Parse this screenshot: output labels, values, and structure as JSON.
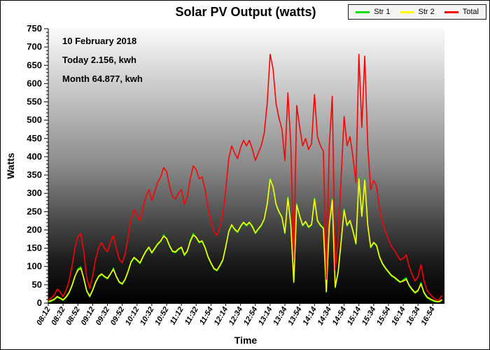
{
  "figure": {
    "title": "Solar PV Output (watts)",
    "x_axis_title": "Time",
    "y_axis_title": "Watts",
    "annotations": {
      "date": "10 February 2018",
      "today": "Today 2.156, kwh",
      "month": "Month 64.877, kwh"
    }
  },
  "legend": {
    "items": [
      {
        "label": "Str 1",
        "color": "#00e000"
      },
      {
        "label": "Str 2",
        "color": "#ffff00"
      },
      {
        "label": "Total",
        "color": "#ff0000"
      }
    ]
  },
  "chart_data": {
    "type": "line",
    "title": "Solar PV Output (watts)",
    "xlabel": "Time",
    "ylabel": "Watts",
    "ylim": [
      0,
      750
    ],
    "ytick_step": 50,
    "grid": false,
    "legend_position": "top-right",
    "plot_background_gradient": [
      "#fafafa",
      "#8a8a8a",
      "#1a1a1a",
      "#000000"
    ],
    "start_time": "08:12",
    "sample_interval_minutes": 4,
    "y_tick_labels": [
      "0",
      "50",
      "100",
      "150",
      "200",
      "250",
      "300",
      "350",
      "400",
      "450",
      "500",
      "550",
      "600",
      "650",
      "700",
      "750"
    ],
    "x_tick_labels": [
      "08:12",
      "08:32",
      "08:52",
      "09:12",
      "09:32",
      "09:52",
      "10:12",
      "10:32",
      "10:52",
      "11:12",
      "11:32",
      "11:54",
      "12:14",
      "12:34",
      "12:54",
      "13:14",
      "13:34",
      "13:54",
      "14:14",
      "14:34",
      "14:54",
      "15:14",
      "15:34",
      "15:54",
      "16:14",
      "16:34",
      "16:54"
    ],
    "series": [
      {
        "name": "Str 1",
        "color": "#00e000",
        "values": [
          2,
          5,
          9,
          16,
          12,
          7,
          15,
          27,
          46,
          71,
          94,
          99,
          66,
          32,
          17,
          34,
          56,
          71,
          78,
          71,
          66,
          78,
          96,
          71,
          56,
          51,
          64,
          86,
          111,
          123,
          116,
          108,
          125,
          140,
          151,
          136,
          148,
          160,
          168,
          187,
          175,
          155,
          140,
          138,
          146,
          151,
          130,
          141,
          172,
          190,
          178,
          165,
          168,
          150,
          125,
          108,
          93,
          88,
          101,
          116,
          157,
          194,
          212,
          200,
          193,
          208,
          219,
          211,
          219,
          212,
          190,
          201,
          211,
          228,
          274,
          342,
          316,
          268,
          248,
          233,
          190,
          291,
          211,
          56,
          272,
          236,
          211,
          221,
          206,
          213,
          288,
          224,
          211,
          203,
          30,
          211,
          285,
          42,
          84,
          166,
          258,
          211,
          224,
          196,
          161,
          343,
          236,
          340,
          211,
          151,
          164,
          156,
          124,
          106,
          94,
          84,
          74,
          69,
          62,
          56,
          64,
          69,
          47,
          36,
          27,
          33,
          56,
          28,
          15,
          10,
          6,
          3,
          2,
          7
        ]
      },
      {
        "name": "Str 2",
        "color": "#ffff00",
        "values": [
          4,
          7,
          11,
          18,
          14,
          9,
          17,
          29,
          48,
          73,
          90,
          95,
          68,
          34,
          19,
          36,
          58,
          73,
          80,
          73,
          68,
          80,
          92,
          73,
          58,
          53,
          66,
          88,
          113,
          125,
          118,
          110,
          127,
          142,
          153,
          138,
          150,
          162,
          170,
          183,
          177,
          157,
          142,
          140,
          148,
          153,
          132,
          143,
          168,
          186,
          180,
          167,
          170,
          152,
          127,
          110,
          95,
          90,
          103,
          118,
          153,
          196,
          214,
          202,
          195,
          210,
          221,
          213,
          221,
          208,
          192,
          203,
          213,
          230,
          270,
          338,
          318,
          270,
          250,
          235,
          192,
          287,
          213,
          58,
          268,
          238,
          213,
          223,
          208,
          215,
          284,
          226,
          213,
          205,
          32,
          213,
          281,
          44,
          86,
          168,
          254,
          213,
          226,
          198,
          163,
          339,
          238,
          336,
          213,
          153,
          166,
          158,
          126,
          108,
          96,
          86,
          76,
          71,
          64,
          58,
          60,
          65,
          49,
          38,
          29,
          35,
          52,
          30,
          17,
          12,
          8,
          5,
          4,
          9
        ]
      },
      {
        "name": "Total",
        "color": "#ff0000",
        "values": [
          8,
          14,
          22,
          38,
          30,
          18,
          35,
          60,
          100,
          150,
          182,
          190,
          140,
          70,
          40,
          75,
          120,
          150,
          165,
          150,
          140,
          165,
          185,
          150,
          120,
          110,
          135,
          180,
          230,
          255,
          240,
          225,
          260,
          290,
          310,
          280,
          305,
          330,
          345,
          370,
          360,
          320,
          290,
          285,
          300,
          310,
          270,
          290,
          340,
          375,
          365,
          340,
          345,
          310,
          260,
          225,
          195,
          185,
          210,
          240,
          310,
          395,
          430,
          410,
          395,
          425,
          445,
          430,
          445,
          420,
          390,
          410,
          430,
          465,
          545,
          680,
          640,
          545,
          505,
          475,
          390,
          575,
          430,
          120,
          540,
          480,
          430,
          450,
          420,
          435,
          570,
          455,
          430,
          415,
          65,
          430,
          565,
          90,
          175,
          340,
          510,
          430,
          455,
          400,
          330,
          680,
          480,
          675,
          430,
          310,
          335,
          320,
          255,
          220,
          195,
          175,
          155,
          145,
          130,
          118,
          122,
          132,
          100,
          78,
          60,
          72,
          105,
          62,
          35,
          25,
          16,
          10,
          8,
          20
        ]
      }
    ]
  }
}
